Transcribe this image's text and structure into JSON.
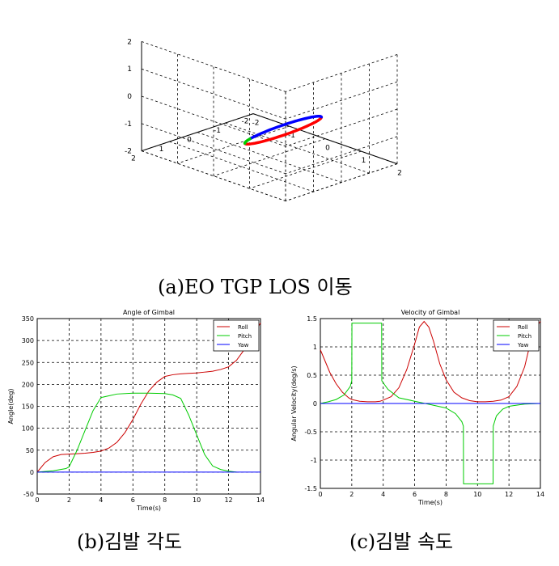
{
  "captions": {
    "a": "(a)EO TGP LOS 이동",
    "b": "(b)김발 각도",
    "c": "(c)김발 속도"
  },
  "chart_data": [
    {
      "type": "line3d",
      "title": "",
      "axis_ticks": {
        "x": [
          -2,
          -1,
          0,
          1,
          2
        ],
        "y": [
          -2,
          -1,
          0,
          1,
          2
        ],
        "z": [
          -2,
          -1,
          0,
          1,
          2
        ]
      },
      "xlim": [
        -2,
        2
      ],
      "ylim": [
        -2,
        2
      ],
      "zlim": [
        -2,
        2
      ],
      "grid": true,
      "series": [
        {
          "color": "#ff0000",
          "description_segment": "lower front arc of tilted ellipse"
        },
        {
          "color": "#0000ff",
          "description_segment": "upper back arc of tilted ellipse"
        },
        {
          "color": "#00cc00",
          "description_segment": "short arc at left end"
        }
      ]
    },
    {
      "type": "line",
      "title": "Angle of Gimbal",
      "xlabel": "Time(s)",
      "ylabel": "Angle(deg)",
      "xlim": [
        0,
        14
      ],
      "ylim": [
        -50,
        350
      ],
      "xticks": [
        0,
        2,
        4,
        6,
        8,
        10,
        12,
        14
      ],
      "yticks": [
        -50,
        0,
        50,
        100,
        150,
        200,
        250,
        300,
        350
      ],
      "grid": true,
      "legend_position": "top-right",
      "series": [
        {
          "name": "Roll",
          "color": "#cc0000",
          "x": [
            0,
            0.5,
            1,
            1.5,
            2,
            2.5,
            3,
            3.5,
            4,
            4.5,
            5,
            5.5,
            6,
            6.5,
            7,
            7.5,
            8,
            8.5,
            9,
            9.5,
            10,
            10.5,
            11,
            11.5,
            12,
            12.5,
            13,
            13.5,
            14
          ],
          "y": [
            0,
            22,
            35,
            40,
            41,
            42,
            43,
            45,
            48,
            55,
            68,
            90,
            120,
            155,
            185,
            205,
            218,
            222,
            224,
            225,
            226,
            228,
            230,
            234,
            240,
            255,
            280,
            310,
            340
          ]
        },
        {
          "name": "Pitch",
          "color": "#00cc00",
          "x": [
            0,
            1,
            1.8,
            2,
            2.5,
            3,
            3.5,
            4,
            5,
            6,
            7,
            8,
            8.5,
            9,
            9.5,
            10,
            10.5,
            11,
            11.5,
            12,
            12.5
          ],
          "y": [
            0,
            3,
            8,
            12,
            50,
            95,
            140,
            170,
            178,
            180,
            180,
            179,
            176,
            168,
            130,
            85,
            40,
            14,
            6,
            2,
            0
          ]
        },
        {
          "name": "Yaw",
          "color": "#0000ff",
          "x": [
            0,
            14
          ],
          "y": [
            0,
            0
          ]
        }
      ]
    },
    {
      "type": "line",
      "title": "Velocity of Gimbal",
      "xlabel": "Time(s)",
      "ylabel": "Angular Velocity(deg/s)",
      "xlim": [
        0,
        14
      ],
      "ylim": [
        -1.5,
        1.5
      ],
      "xticks": [
        0,
        2,
        4,
        6,
        8,
        10,
        12,
        14
      ],
      "yticks": [
        -1.5,
        -1,
        -0.5,
        0,
        0.5,
        1,
        1.5
      ],
      "grid": true,
      "legend_position": "top-right",
      "series": [
        {
          "name": "Roll",
          "color": "#cc0000",
          "x": [
            0,
            0.3,
            0.6,
            1,
            1.4,
            1.8,
            2,
            2.5,
            3,
            3.5,
            3.8,
            4,
            4.5,
            5,
            5.5,
            6,
            6.3,
            6.6,
            6.9,
            7.2,
            7.6,
            8,
            8.5,
            9,
            9.5,
            10,
            10.5,
            11,
            11.5,
            12,
            12.5,
            13,
            13.3,
            13.6,
            14
          ],
          "y": [
            0.95,
            0.75,
            0.55,
            0.35,
            0.2,
            0.1,
            0.07,
            0.04,
            0.03,
            0.03,
            0.04,
            0.06,
            0.12,
            0.28,
            0.6,
            1.05,
            1.35,
            1.45,
            1.35,
            1.1,
            0.7,
            0.42,
            0.2,
            0.1,
            0.05,
            0.03,
            0.03,
            0.04,
            0.06,
            0.12,
            0.3,
            0.65,
            1.0,
            1.3,
            1.45
          ]
        },
        {
          "name": "Pitch",
          "color": "#00cc00",
          "x": [
            0,
            0.5,
            1,
            1.5,
            1.9,
            2,
            2.01,
            3.9,
            3.91,
            4.3,
            5,
            6,
            7,
            8,
            8.6,
            9,
            9.1,
            9.11,
            10.99,
            11,
            11.2,
            11.6,
            12,
            13,
            14
          ],
          "y": [
            0,
            0.03,
            0.07,
            0.15,
            0.3,
            0.4,
            1.42,
            1.42,
            0.4,
            0.25,
            0.1,
            0.04,
            -0.02,
            -0.08,
            -0.18,
            -0.32,
            -0.4,
            -1.42,
            -1.42,
            -0.4,
            -0.22,
            -0.1,
            -0.05,
            -0.01,
            0
          ]
        },
        {
          "name": "Yaw",
          "color": "#0000ff",
          "x": [
            0,
            14
          ],
          "y": [
            0,
            0
          ]
        }
      ]
    }
  ]
}
